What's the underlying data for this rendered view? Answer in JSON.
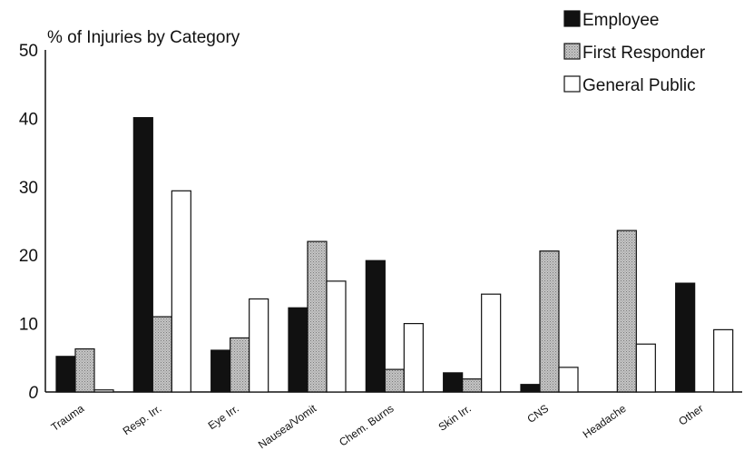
{
  "chart_data": {
    "type": "bar",
    "title": "% of Injuries by Category",
    "categories": [
      "Trauma",
      "Resp. Irr.",
      "Eye Irr.",
      "Nausea/Vomit",
      "Chem. Burns",
      "Skin Irr.",
      "CNS",
      "Headache",
      "Other"
    ],
    "series": [
      {
        "name": "Employee",
        "values": [
          5.2,
          40.1,
          6.1,
          12.3,
          19.2,
          2.8,
          1.1,
          0,
          15.9
        ]
      },
      {
        "name": "First Responder",
        "values": [
          6.3,
          11.0,
          7.9,
          22.0,
          3.3,
          1.9,
          20.6,
          23.6,
          0
        ]
      },
      {
        "name": "General Public",
        "values": [
          0.3,
          29.4,
          13.6,
          16.2,
          10.0,
          14.3,
          3.6,
          7.0,
          9.1
        ]
      }
    ],
    "ylim": [
      0,
      50
    ],
    "yticks": [
      "0",
      "10",
      "20",
      "30",
      "40",
      "50"
    ],
    "xlabel": "",
    "ylabel": "",
    "grid": false,
    "legend_position": "top-right",
    "colors": {
      "Employee": "#111111",
      "First Responder": "#bdbdbd",
      "General Public": "#ffffff"
    }
  }
}
